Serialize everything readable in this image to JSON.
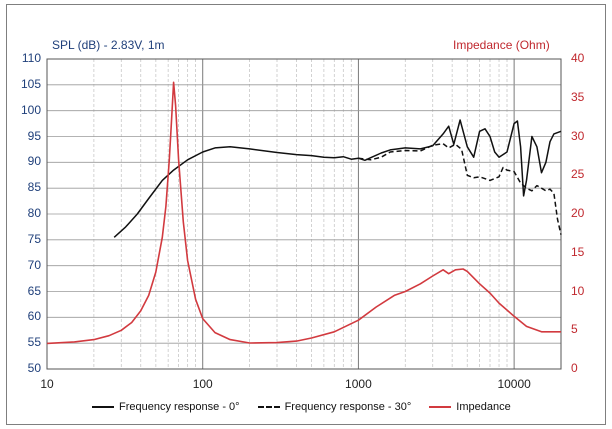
{
  "chart_data": {
    "type": "line",
    "title_left": "SPL (dB) - 2.83V, 1m",
    "title_right": "Impedance (Ohm)",
    "x_scale": "log",
    "xlim": [
      10,
      20000
    ],
    "x_ticks": [
      "10",
      "100",
      "1000",
      "10000"
    ],
    "ylim_left": [
      50,
      110
    ],
    "y_ticks_left": [
      "50",
      "55",
      "60",
      "65",
      "70",
      "75",
      "80",
      "85",
      "90",
      "95",
      "100",
      "105",
      "110"
    ],
    "ylim_right": [
      0,
      40
    ],
    "y_ticks_right": [
      "0",
      "5",
      "10",
      "15",
      "20",
      "25",
      "30",
      "35",
      "40"
    ],
    "grid": true,
    "legend_position": "bottom",
    "series": [
      {
        "name": "Frequency response - 0°",
        "axis": "left",
        "color": "#111111",
        "style": "solid",
        "points": [
          [
            27,
            75.5
          ],
          [
            32,
            77.5
          ],
          [
            38,
            80
          ],
          [
            45,
            83
          ],
          [
            55,
            86.5
          ],
          [
            65,
            88.5
          ],
          [
            80,
            90.5
          ],
          [
            100,
            92
          ],
          [
            120,
            92.8
          ],
          [
            150,
            93
          ],
          [
            200,
            92.6
          ],
          [
            300,
            91.9
          ],
          [
            400,
            91.5
          ],
          [
            500,
            91.3
          ],
          [
            600,
            91
          ],
          [
            700,
            90.9
          ],
          [
            800,
            91.1
          ],
          [
            900,
            90.6
          ],
          [
            1000,
            90.8
          ],
          [
            1100,
            90.4
          ],
          [
            1200,
            90.9
          ],
          [
            1400,
            91.8
          ],
          [
            1600,
            92.4
          ],
          [
            2000,
            92.8
          ],
          [
            2500,
            92.6
          ],
          [
            3000,
            93.2
          ],
          [
            3500,
            95.5
          ],
          [
            3800,
            97
          ],
          [
            4100,
            93.5
          ],
          [
            4500,
            98.2
          ],
          [
            5000,
            93
          ],
          [
            5500,
            91
          ],
          [
            6000,
            96
          ],
          [
            6500,
            96.5
          ],
          [
            7000,
            95
          ],
          [
            7500,
            92
          ],
          [
            8000,
            91
          ],
          [
            9000,
            92
          ],
          [
            10000,
            97.5
          ],
          [
            10500,
            98
          ],
          [
            11000,
            93
          ],
          [
            11500,
            83.5
          ],
          [
            12000,
            86.5
          ],
          [
            13000,
            95
          ],
          [
            14000,
            93
          ],
          [
            15000,
            88
          ],
          [
            16000,
            90
          ],
          [
            17000,
            94
          ],
          [
            18000,
            95.5
          ],
          [
            20000,
            96
          ]
        ]
      },
      {
        "name": "Frequency response - 30°",
        "axis": "left",
        "color": "#111111",
        "style": "dashed",
        "points": [
          [
            1000,
            90.8
          ],
          [
            1200,
            90.5
          ],
          [
            1400,
            91
          ],
          [
            1600,
            92
          ],
          [
            2000,
            92.3
          ],
          [
            2500,
            92.2
          ],
          [
            3000,
            93.3
          ],
          [
            3500,
            93.6
          ],
          [
            3800,
            92.8
          ],
          [
            4200,
            93.5
          ],
          [
            4600,
            92.5
          ],
          [
            5000,
            87.5
          ],
          [
            5500,
            87
          ],
          [
            6000,
            87.2
          ],
          [
            7000,
            86.5
          ],
          [
            8000,
            87.2
          ],
          [
            8500,
            89
          ],
          [
            9000,
            88.5
          ],
          [
            10000,
            88.2
          ],
          [
            11000,
            86
          ],
          [
            12000,
            85
          ],
          [
            13000,
            84.5
          ],
          [
            14000,
            85.5
          ],
          [
            15000,
            85
          ],
          [
            16000,
            84.5
          ],
          [
            17000,
            84.8
          ],
          [
            18000,
            84
          ],
          [
            19000,
            79
          ],
          [
            20000,
            76
          ]
        ]
      },
      {
        "name": "Impedance",
        "axis": "right",
        "color": "#d23a3f",
        "style": "solid",
        "points": [
          [
            10,
            3.3
          ],
          [
            15,
            3.5
          ],
          [
            20,
            3.8
          ],
          [
            25,
            4.3
          ],
          [
            30,
            5
          ],
          [
            35,
            6
          ],
          [
            40,
            7.5
          ],
          [
            45,
            9.5
          ],
          [
            50,
            12.5
          ],
          [
            55,
            17
          ],
          [
            58,
            21
          ],
          [
            61,
            27
          ],
          [
            63,
            32
          ],
          [
            65,
            37
          ],
          [
            67,
            34
          ],
          [
            70,
            27
          ],
          [
            75,
            19
          ],
          [
            80,
            14
          ],
          [
            90,
            9
          ],
          [
            100,
            6.5
          ],
          [
            120,
            4.7
          ],
          [
            150,
            3.8
          ],
          [
            200,
            3.35
          ],
          [
            300,
            3.4
          ],
          [
            400,
            3.6
          ],
          [
            500,
            4
          ],
          [
            700,
            4.8
          ],
          [
            1000,
            6.3
          ],
          [
            1300,
            8
          ],
          [
            1700,
            9.5
          ],
          [
            2000,
            10
          ],
          [
            2500,
            11
          ],
          [
            3000,
            12
          ],
          [
            3500,
            12.8
          ],
          [
            3800,
            12.3
          ],
          [
            4200,
            12.8
          ],
          [
            4700,
            12.9
          ],
          [
            5000,
            12.6
          ],
          [
            6000,
            11
          ],
          [
            7000,
            9.8
          ],
          [
            8000,
            8.5
          ],
          [
            10000,
            6.8
          ],
          [
            12000,
            5.5
          ],
          [
            15000,
            4.8
          ],
          [
            20000,
            4.8
          ]
        ]
      }
    ]
  },
  "legend": {
    "items": [
      "Frequency response - 0°",
      "Frequency response - 30°",
      "Impedance"
    ]
  }
}
